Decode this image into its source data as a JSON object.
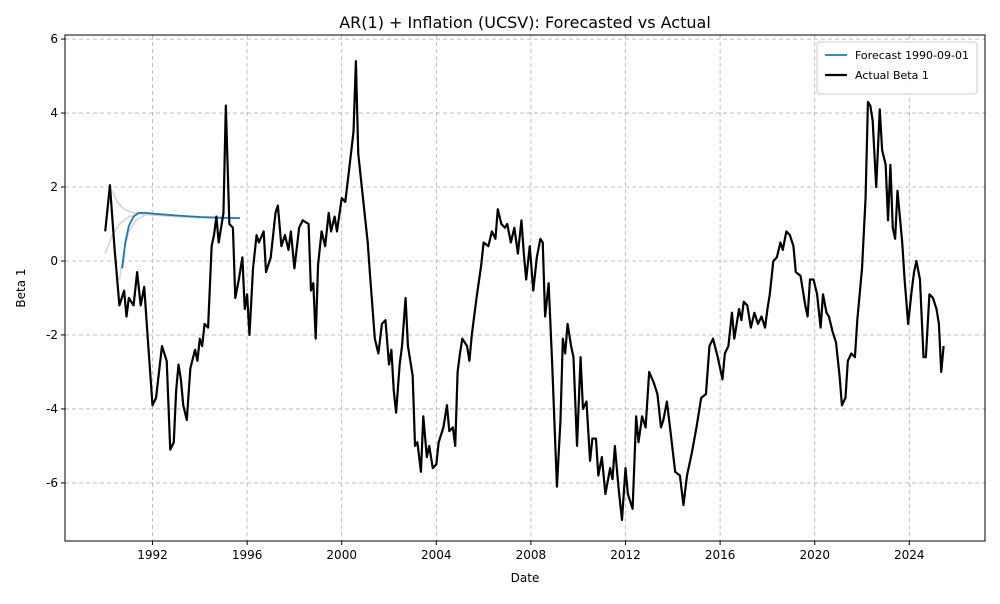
{
  "chart_data": {
    "type": "line",
    "title": "AR(1) + Inflation (UCSV): Forecasted vs Actual",
    "xlabel": "Date",
    "ylabel": "Beta 1",
    "xlim": [
      1988.3,
      2027.2
    ],
    "ylim": [
      -7.57,
      6.11
    ],
    "xticks": [
      1992,
      1996,
      2000,
      2004,
      2008,
      2012,
      2016,
      2020,
      2024
    ],
    "yticks": [
      -6,
      -4,
      -2,
      0,
      2,
      4,
      6
    ],
    "grid": true,
    "legend": "upper right",
    "series": [
      {
        "name": "Forecast 1990-09-01",
        "color": "#1f77b4",
        "width": 1.8,
        "x": [
          1990.72,
          1990.85,
          1991.0,
          1991.2,
          1991.4,
          1991.7,
          1992.0,
          1993.0,
          1994.0,
          1995.0,
          1995.7
        ],
        "values": [
          -0.2,
          0.5,
          0.95,
          1.2,
          1.3,
          1.3,
          1.28,
          1.23,
          1.19,
          1.17,
          1.16
        ]
      },
      {
        "name": "Actual Beta 1",
        "color": "#000000",
        "width": 2.2,
        "x": [
          1990.0,
          1990.2,
          1990.4,
          1990.6,
          1990.8,
          1990.9,
          1991.0,
          1991.2,
          1991.35,
          1991.5,
          1991.65,
          1991.8,
          1992.0,
          1992.15,
          1992.4,
          1992.6,
          1992.75,
          1992.9,
          1993.0,
          1993.1,
          1993.2,
          1993.3,
          1993.45,
          1993.6,
          1993.8,
          1993.9,
          1994.0,
          1994.1,
          1994.2,
          1994.35,
          1994.5,
          1994.6,
          1994.7,
          1994.8,
          1995.0,
          1995.1,
          1995.25,
          1995.4,
          1995.5,
          1995.65,
          1995.8,
          1995.9,
          1996.0,
          1996.1,
          1996.25,
          1996.4,
          1996.5,
          1996.7,
          1996.8,
          1997.0,
          1997.2,
          1997.3,
          1997.45,
          1997.6,
          1997.75,
          1997.85,
          1998.0,
          1998.2,
          1998.35,
          1998.6,
          1998.7,
          1998.8,
          1998.9,
          1999.0,
          1999.15,
          1999.3,
          1999.45,
          1999.55,
          1999.7,
          1999.8,
          2000.0,
          2000.15,
          2000.3,
          2000.5,
          2000.6,
          2000.7,
          2000.9,
          2001.1,
          2001.2,
          2001.4,
          2001.55,
          2001.7,
          2001.85,
          2002.0,
          2002.1,
          2002.2,
          2002.3,
          2002.45,
          2002.55,
          2002.7,
          2002.8,
          2003.0,
          2003.1,
          2003.2,
          2003.35,
          2003.45,
          2003.6,
          2003.7,
          2003.85,
          2004.0,
          2004.1,
          2004.3,
          2004.45,
          2004.55,
          2004.7,
          2004.8,
          2004.9,
          2005.0,
          2005.1,
          2005.3,
          2005.4,
          2005.5,
          2005.7,
          2005.9,
          2006.0,
          2006.2,
          2006.35,
          2006.5,
          2006.6,
          2006.75,
          2006.9,
          2007.0,
          2007.15,
          2007.3,
          2007.45,
          2007.6,
          2007.7,
          2007.8,
          2007.95,
          2008.1,
          2008.25,
          2008.4,
          2008.5,
          2008.6,
          2008.75,
          2008.9,
          2009.1,
          2009.25,
          2009.35,
          2009.45,
          2009.55,
          2009.7,
          2009.8,
          2009.95,
          2010.1,
          2010.2,
          2010.35,
          2010.5,
          2010.6,
          2010.75,
          2010.85,
          2011.0,
          2011.15,
          2011.35,
          2011.45,
          2011.55,
          2011.7,
          2011.85,
          2012.0,
          2012.1,
          2012.3,
          2012.45,
          2012.55,
          2012.7,
          2012.85,
          2013.0,
          2013.2,
          2013.35,
          2013.5,
          2013.6,
          2013.75,
          2013.9,
          2014.1,
          2014.3,
          2014.45,
          2014.6,
          2014.8,
          2015.0,
          2015.2,
          2015.4,
          2015.55,
          2015.7,
          2015.9,
          2016.1,
          2016.2,
          2016.35,
          2016.5,
          2016.6,
          2016.8,
          2016.9,
          2017.0,
          2017.15,
          2017.3,
          2017.45,
          2017.6,
          2017.75,
          2017.9,
          2018.0,
          2018.1,
          2018.25,
          2018.4,
          2018.55,
          2018.65,
          2018.8,
          2018.95,
          2019.1,
          2019.2,
          2019.4,
          2019.6,
          2019.7,
          2019.8,
          2019.95,
          2020.1,
          2020.25,
          2020.35,
          2020.5,
          2020.6,
          2020.75,
          2020.9,
          2021.05,
          2021.15,
          2021.3,
          2021.4,
          2021.55,
          2021.7,
          2021.8,
          2022.0,
          2022.15,
          2022.25,
          2022.35,
          2022.45,
          2022.6,
          2022.75,
          2022.85,
          2023.0,
          2023.1,
          2023.2,
          2023.3,
          2023.4,
          2023.5,
          2023.7,
          2023.8,
          2023.95,
          2024.1,
          2024.2,
          2024.3,
          2024.45,
          2024.6,
          2024.7,
          2024.85,
          2025.0,
          2025.15,
          2025.25,
          2025.35,
          2025.45
        ],
        "values": [
          0.8,
          2.05,
          0.3,
          -1.2,
          -0.8,
          -1.5,
          -1.0,
          -1.2,
          -0.3,
          -1.2,
          -0.7,
          -2.1,
          -3.9,
          -3.7,
          -2.3,
          -2.7,
          -5.1,
          -4.9,
          -3.5,
          -2.8,
          -3.2,
          -3.9,
          -4.3,
          -2.9,
          -2.4,
          -2.7,
          -2.1,
          -2.3,
          -1.7,
          -1.8,
          0.4,
          0.7,
          1.2,
          0.5,
          1.3,
          4.2,
          1.0,
          0.9,
          -1.0,
          -0.5,
          0.1,
          -1.3,
          -0.9,
          -2.0,
          -0.2,
          0.7,
          0.5,
          0.8,
          -0.3,
          0.1,
          1.3,
          1.5,
          0.4,
          0.7,
          0.3,
          0.8,
          -0.2,
          0.9,
          1.1,
          1.0,
          -0.8,
          -0.6,
          -2.1,
          -0.1,
          0.8,
          0.4,
          1.3,
          0.8,
          1.2,
          0.8,
          1.7,
          1.6,
          2.4,
          3.5,
          5.4,
          2.9,
          1.7,
          0.5,
          -0.4,
          -2.1,
          -2.5,
          -1.7,
          -1.6,
          -2.8,
          -2.4,
          -3.5,
          -4.1,
          -2.8,
          -2.3,
          -1.0,
          -2.3,
          -3.1,
          -5.0,
          -4.9,
          -5.7,
          -4.2,
          -5.3,
          -5.0,
          -5.6,
          -5.5,
          -4.9,
          -4.5,
          -3.9,
          -4.6,
          -4.5,
          -5.0,
          -3.0,
          -2.5,
          -2.1,
          -2.3,
          -2.7,
          -2.0,
          -1.0,
          -0.1,
          0.5,
          0.4,
          0.8,
          0.6,
          1.4,
          1.0,
          0.9,
          1.0,
          0.5,
          0.9,
          0.2,
          1.1,
          0.2,
          -0.5,
          0.4,
          -0.8,
          0.1,
          0.6,
          0.5,
          -1.5,
          -0.6,
          -2.8,
          -6.1,
          -4.3,
          -2.1,
          -2.5,
          -1.7,
          -2.3,
          -2.6,
          -5.0,
          -2.6,
          -4.0,
          -3.8,
          -5.4,
          -4.8,
          -4.8,
          -5.8,
          -5.3,
          -6.3,
          -5.6,
          -5.9,
          -5.0,
          -6.1,
          -7.0,
          -5.6,
          -6.3,
          -6.7,
          -4.2,
          -4.9,
          -4.2,
          -4.5,
          -3.0,
          -3.3,
          -3.6,
          -4.5,
          -4.3,
          -3.8,
          -4.6,
          -5.7,
          -5.8,
          -6.6,
          -5.8,
          -5.2,
          -4.5,
          -3.7,
          -3.6,
          -2.3,
          -2.1,
          -2.6,
          -3.2,
          -2.5,
          -2.3,
          -1.4,
          -2.1,
          -1.3,
          -1.6,
          -1.1,
          -1.2,
          -1.8,
          -1.4,
          -1.7,
          -1.5,
          -1.8,
          -1.3,
          -0.9,
          0.0,
          0.1,
          0.5,
          0.3,
          0.8,
          0.7,
          0.4,
          -0.3,
          -0.4,
          -1.2,
          -1.5,
          -0.5,
          -0.5,
          -0.9,
          -1.8,
          -0.9,
          -1.4,
          -1.5,
          -1.9,
          -2.2,
          -3.1,
          -3.9,
          -3.7,
          -2.7,
          -2.5,
          -2.6,
          -1.6,
          -0.2,
          1.7,
          4.3,
          4.2,
          3.8,
          2.0,
          4.1,
          3.0,
          2.6,
          1.1,
          2.6,
          0.9,
          0.6,
          1.9,
          0.5,
          -0.5,
          -1.7,
          -0.8,
          -0.3,
          0.0,
          -0.5,
          -2.6,
          -2.6,
          -0.9,
          -1.0,
          -1.3,
          -1.7,
          -3.0,
          -2.3
        ]
      },
      {
        "color": "#d3d3d3",
        "width": 1.5,
        "x": [
          1990.0,
          1990.3,
          1990.6,
          1991.0,
          1991.5,
          1992.0,
          1993.0,
          1994.0,
          1995.0
        ],
        "values": [
          0.2,
          0.7,
          1.0,
          1.2,
          1.28,
          1.25,
          1.2,
          1.17,
          1.15
        ]
      },
      {
        "color": "#d3d3d3",
        "width": 1.5,
        "x": [
          1990.3,
          1990.5,
          1990.8,
          1991.2,
          1991.8,
          1992.5,
          1993.5,
          1994.5,
          1995.3
        ],
        "values": [
          1.9,
          1.6,
          1.4,
          1.3,
          1.25,
          1.22,
          1.19,
          1.17,
          1.16
        ]
      },
      {
        "color": "#d3d3d3",
        "width": 1.5,
        "x": [
          1990.6,
          1990.8,
          1991.0,
          1991.3,
          1991.7,
          1992.3,
          1993.3,
          1994.3,
          1995.5
        ],
        "values": [
          -0.5,
          0.3,
          0.8,
          1.1,
          1.25,
          1.27,
          1.22,
          1.18,
          1.16
        ]
      }
    ]
  }
}
